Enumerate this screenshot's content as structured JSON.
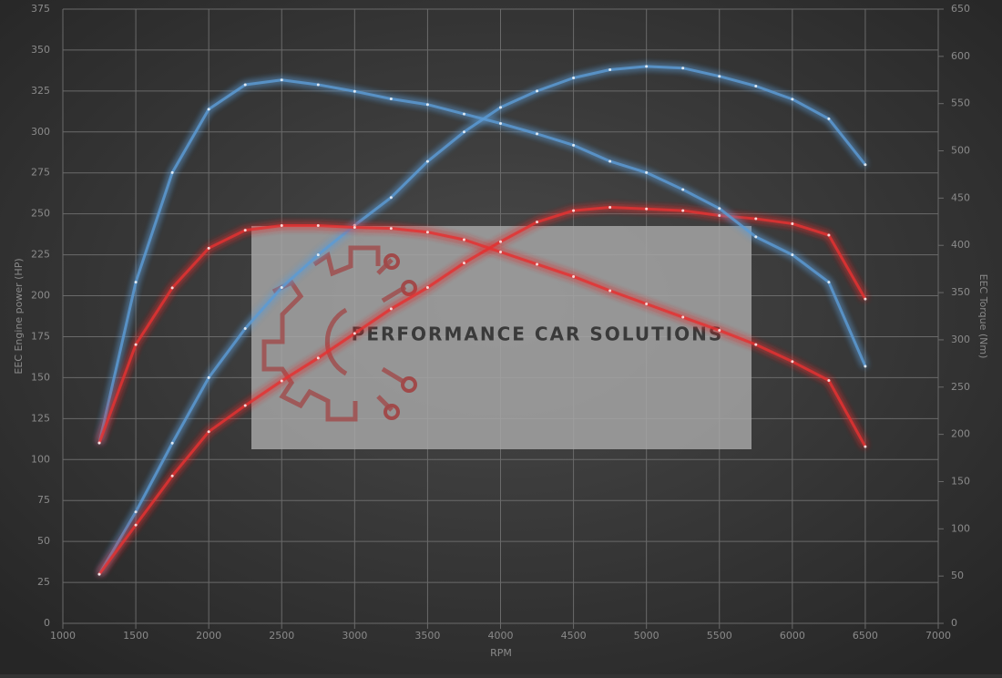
{
  "chart_data": {
    "type": "line",
    "x_label": "RPM",
    "y_label": "EEC Engine power (HP)",
    "y2_label": "EEC Torque (Nm)",
    "watermark": "PERFORMANCE CAR SOLUTIONS",
    "x": [
      1250,
      1500,
      1750,
      2000,
      2250,
      2500,
      2750,
      3000,
      3250,
      3500,
      3750,
      4000,
      4250,
      4500,
      4750,
      5000,
      5250,
      5500,
      5750,
      6000,
      6250,
      6500
    ],
    "series": [
      {
        "color": "#5b9bd5",
        "values": [
          30,
          68,
          110,
          150,
          180,
          205,
          225,
          243,
          260,
          282,
          300,
          315,
          325,
          333,
          338,
          340,
          339,
          334,
          328,
          320,
          308,
          280
        ]
      },
      {
        "color": "#e53030",
        "values": [
          30,
          60,
          90,
          117,
          133,
          148,
          162,
          177,
          192,
          205,
          220,
          233,
          245,
          252,
          254,
          253,
          252,
          249,
          247,
          244,
          237,
          198
        ]
      },
      {
        "color": "#5b9bd5",
        "axis": "y2",
        "values": [
          191,
          361,
          477,
          544,
          570,
          575,
          570,
          563,
          555,
          549,
          539,
          529,
          518,
          506,
          489,
          477,
          459,
          439,
          409,
          390,
          361,
          272
        ]
      },
      {
        "color": "#e53030",
        "axis": "y2",
        "values": [
          191,
          295,
          355,
          397,
          416,
          421,
          421,
          419,
          418,
          414,
          406,
          393,
          380,
          367,
          352,
          338,
          324,
          310,
          295,
          277,
          257,
          187
        ]
      }
    ],
    "xlim": [
      1000,
      7000
    ],
    "xticks": [
      1000,
      1500,
      2000,
      2500,
      3000,
      3500,
      4000,
      4500,
      5000,
      5500,
      6000,
      6500,
      7000
    ],
    "ylim": [
      0,
      375
    ],
    "yticks": [
      0,
      25,
      50,
      75,
      100,
      125,
      150,
      175,
      200,
      225,
      250,
      275,
      300,
      325,
      350,
      375
    ],
    "y2lim": [
      0,
      650
    ],
    "y2ticks": [
      0,
      50,
      100,
      150,
      200,
      250,
      300,
      350,
      400,
      450,
      500,
      550,
      600,
      650
    ],
    "grid": true
  }
}
